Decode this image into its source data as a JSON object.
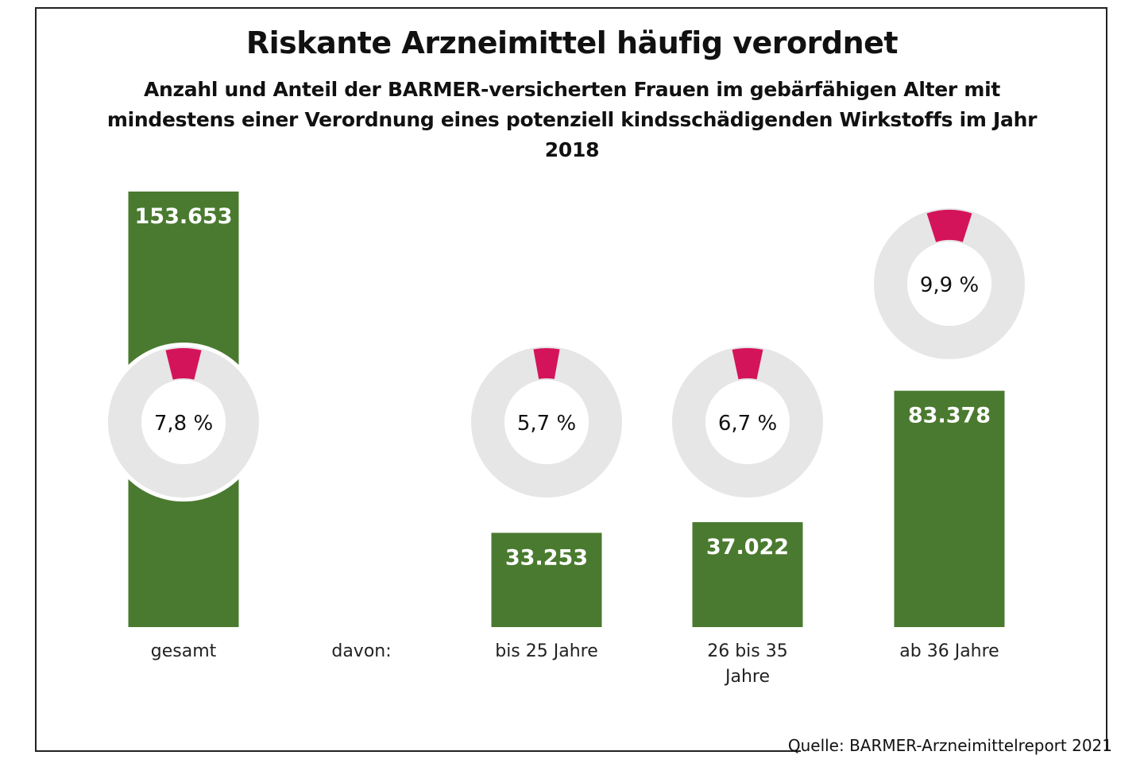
{
  "title": "Riskante Arzneimittel häufig verordnet",
  "subtitle": "Anzahl und Anteil der BARMER-versicherten Frauen im gebärfähigen Alter mit mindestens einer Verordnung eines potenziell kindsschädigenden Wirkstoffs im Jahr 2018",
  "source": "Quelle: BARMER-Arzneimittelreport 2021",
  "davon_label": "davon:",
  "colors": {
    "bar": "#4a7a2f",
    "donut_track": "#e6e6e6",
    "donut_share": "#d4145a",
    "bar_text": "#ffffff",
    "frame": "#222222"
  },
  "chart_data": {
    "type": "bar",
    "categories": [
      "gesamt",
      "bis 25 Jahre",
      "26 bis 35 Jahre",
      "ab 36 Jahre"
    ],
    "values": [
      153653,
      33253,
      37022,
      83378
    ],
    "value_labels": [
      "153.653",
      "33.253",
      "37.022",
      "83.378"
    ],
    "shares_percent": [
      7.8,
      5.7,
      6.7,
      9.9
    ],
    "share_labels": [
      "7,8 %",
      "5,7 %",
      "6,7 %",
      "9,9 %"
    ],
    "ylim": [
      0,
      153653
    ]
  }
}
